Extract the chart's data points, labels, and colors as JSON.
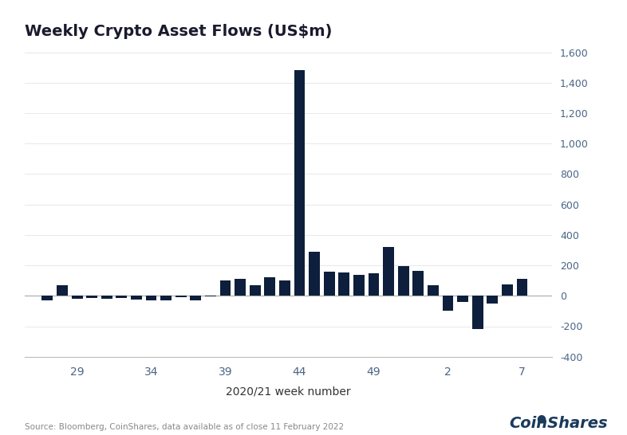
{
  "title": "Weekly Crypto Asset Flows (US$m)",
  "xlabel": "2020/21 week number",
  "bar_color": "#0d1f3c",
  "background_color": "#ffffff",
  "source_text": "Source: Bloomberg, CoinShares, data available as of close 11 February 2022",
  "ylim": [
    -400,
    1600
  ],
  "yticks": [
    -400,
    -200,
    0,
    200,
    400,
    600,
    800,
    1000,
    1200,
    1400,
    1600
  ],
  "xtick_labels": [
    "29",
    "34",
    "39",
    "44",
    "49",
    "2",
    "7"
  ],
  "xtick_positions": [
    29,
    34,
    39,
    44,
    49,
    54,
    59
  ],
  "weeks": [
    27,
    28,
    29,
    30,
    31,
    32,
    33,
    34,
    35,
    36,
    37,
    38,
    39,
    40,
    41,
    42,
    43,
    44,
    45,
    46,
    47,
    48,
    49,
    50,
    51,
    52,
    53,
    54,
    55,
    56,
    57,
    58,
    59
  ],
  "values": [
    -30,
    70,
    -20,
    -15,
    -20,
    -15,
    -25,
    -30,
    -30,
    -10,
    -30,
    -5,
    100,
    110,
    70,
    120,
    100,
    1480,
    290,
    160,
    155,
    140,
    150,
    320,
    195,
    165,
    70,
    -100,
    -40,
    -220,
    -50,
    75,
    110
  ]
}
